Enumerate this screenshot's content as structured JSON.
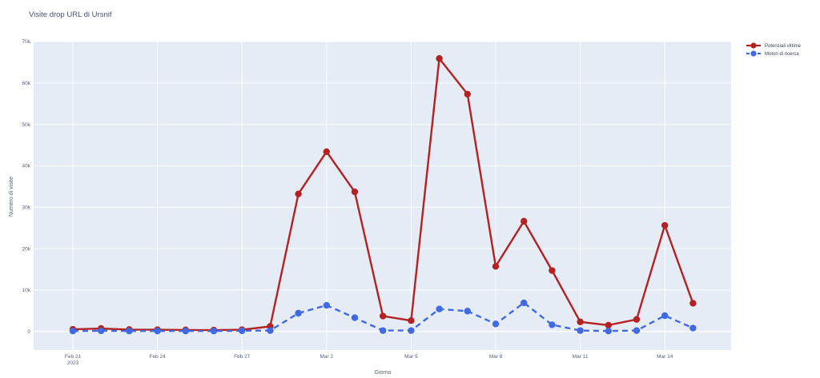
{
  "chart_data": {
    "type": "line",
    "title": "Visite drop URL di Ursnif",
    "xlabel": "Giorno",
    "ylabel": "Numero di visite",
    "x_ticks": [
      {
        "day": 0,
        "label": "Feb 21",
        "sub": "2023"
      },
      {
        "day": 3,
        "label": "Feb 24",
        "sub": ""
      },
      {
        "day": 6,
        "label": "Feb 27",
        "sub": ""
      },
      {
        "day": 9,
        "label": "Mar 2",
        "sub": ""
      },
      {
        "day": 12,
        "label": "Mar 5",
        "sub": ""
      },
      {
        "day": 15,
        "label": "Mar 8",
        "sub": ""
      },
      {
        "day": 18,
        "label": "Mar 11",
        "sub": ""
      },
      {
        "day": 21,
        "label": "Mar 14",
        "sub": ""
      }
    ],
    "y_ticks": [
      {
        "value": 0,
        "label": "0"
      },
      {
        "value": 10000,
        "label": "10k"
      },
      {
        "value": 20000,
        "label": "20k"
      },
      {
        "value": 30000,
        "label": "30k"
      },
      {
        "value": 40000,
        "label": "40k"
      },
      {
        "value": 50000,
        "label": "50k"
      },
      {
        "value": 60000,
        "label": "60k"
      },
      {
        "value": 70000,
        "label": "70k"
      }
    ],
    "ylim": [
      -4500,
      70000
    ],
    "x": [
      "2023-02-21",
      "2023-02-22",
      "2023-02-23",
      "2023-02-24",
      "2023-02-25",
      "2023-02-26",
      "2023-02-27",
      "2023-02-28",
      "2023-03-01",
      "2023-03-02",
      "2023-03-03",
      "2023-03-04",
      "2023-03-05",
      "2023-03-06",
      "2023-03-07",
      "2023-03-08",
      "2023-03-09",
      "2023-03-10",
      "2023-03-11",
      "2023-03-12",
      "2023-03-13",
      "2023-03-14",
      "2023-03-15"
    ],
    "series": [
      {
        "name": "Potenziali vittime",
        "color": "#b22222",
        "dash": "solid",
        "values": [
          500,
          700,
          450,
          400,
          350,
          300,
          400,
          1200,
          33200,
          43400,
          33700,
          3700,
          2600,
          65900,
          57300,
          15700,
          26600,
          14700,
          2300,
          1500,
          2900,
          25600,
          6800
        ]
      },
      {
        "name": "Motori di ricerca",
        "color": "#4169e1",
        "dash": "dash",
        "values": [
          100,
          150,
          100,
          100,
          100,
          100,
          150,
          200,
          4400,
          6300,
          3300,
          200,
          200,
          5400,
          4900,
          1800,
          6900,
          1600,
          200,
          100,
          200,
          3800,
          800
        ]
      }
    ],
    "grid": true,
    "legend_position": "top-right",
    "plot_bg": "#e5ecf6"
  }
}
